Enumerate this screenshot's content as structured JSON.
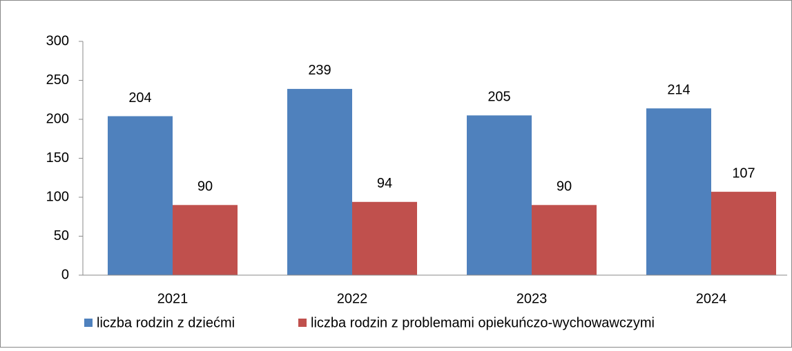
{
  "chart_data": {
    "type": "bar",
    "categories": [
      "2021",
      "2022",
      "2023",
      "2024"
    ],
    "series": [
      {
        "name": "liczba rodzin z dziećmi",
        "color": "#4f81bd",
        "values": [
          204,
          239,
          205,
          214
        ]
      },
      {
        "name": "liczba rodzin z problemami opiekuńczo-wychowawczymi",
        "color": "#c0504d",
        "values": [
          90,
          94,
          90,
          107
        ]
      }
    ],
    "ylim": [
      0,
      300
    ],
    "yticks": [
      0,
      50,
      100,
      150,
      200,
      250,
      300
    ],
    "grid": false,
    "legend": "bottom"
  }
}
